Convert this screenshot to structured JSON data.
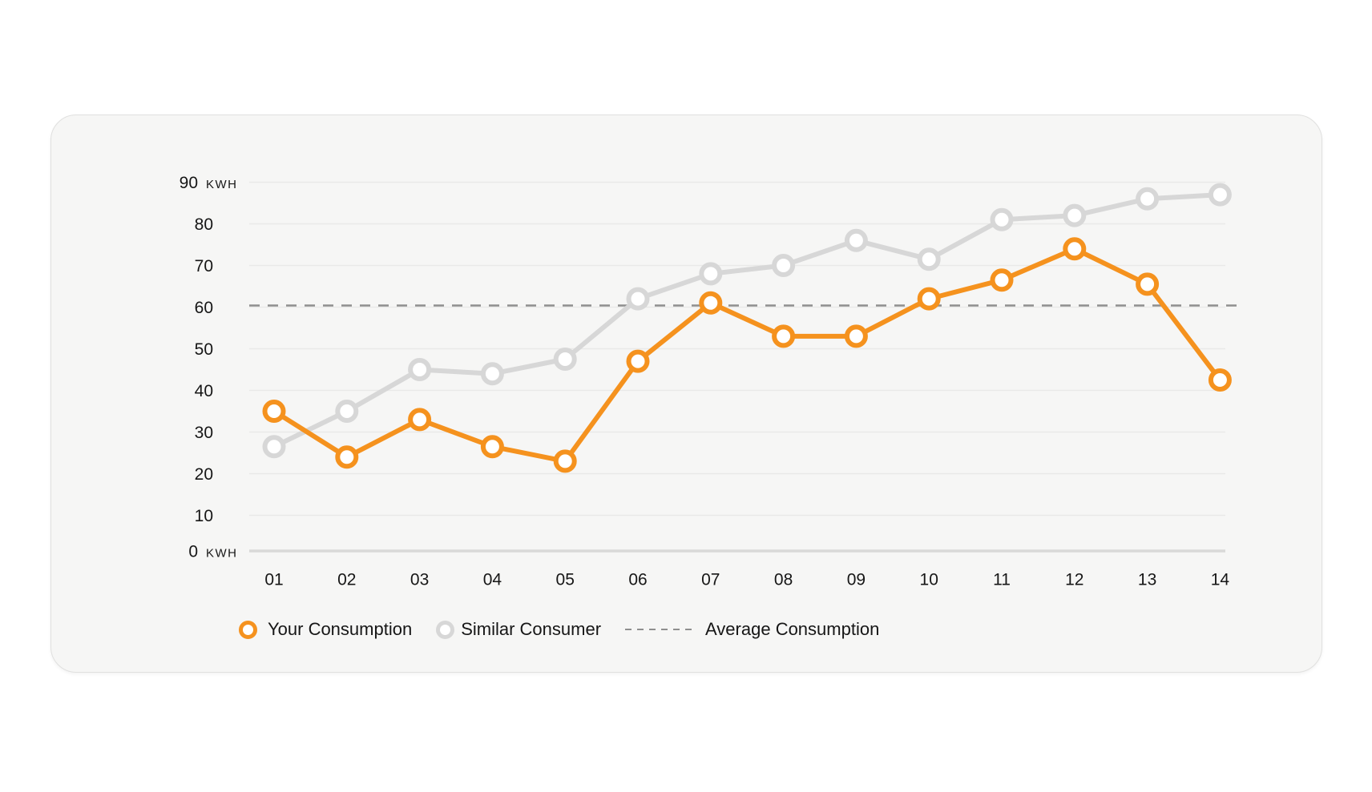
{
  "colors": {
    "page_bg": "#ffffff",
    "card_bg": "#f6f6f5",
    "card_border": "#e0e0df",
    "gridline": "#e9e9e8",
    "baseline": "#d9d9d8",
    "axis_text": "#161616",
    "accent_orange": "#F5921E",
    "series_gray": "#D7D7D7",
    "average_gray": "#8f8f8f"
  },
  "chart_data": {
    "type": "line",
    "title": "",
    "unit": "KWH",
    "x_categories": [
      "01",
      "02",
      "03",
      "04",
      "05",
      "06",
      "07",
      "08",
      "09",
      "10",
      "11",
      "12",
      "13",
      "14"
    ],
    "series": [
      {
        "name": "Your Consumption",
        "color": "#F5921E",
        "values": [
          35,
          24,
          33,
          26.5,
          23,
          47,
          61,
          53,
          53,
          62,
          66.5,
          74,
          65.5,
          42.5
        ]
      },
      {
        "name": "Similar Consumer",
        "color": "#D7D7D7",
        "values": [
          26.5,
          35,
          45,
          44,
          47.5,
          62,
          68,
          70,
          76,
          71.5,
          81,
          82,
          86,
          87
        ]
      }
    ],
    "average_line": {
      "name": "Average Consumption",
      "value": 60,
      "style": "dashed",
      "color": "#8f8f8f"
    },
    "ylim": [
      0,
      90
    ],
    "ytick_step": 10,
    "yticks_with_unit": [
      90,
      0
    ],
    "grid": true,
    "legend_position": "bottom-left"
  }
}
